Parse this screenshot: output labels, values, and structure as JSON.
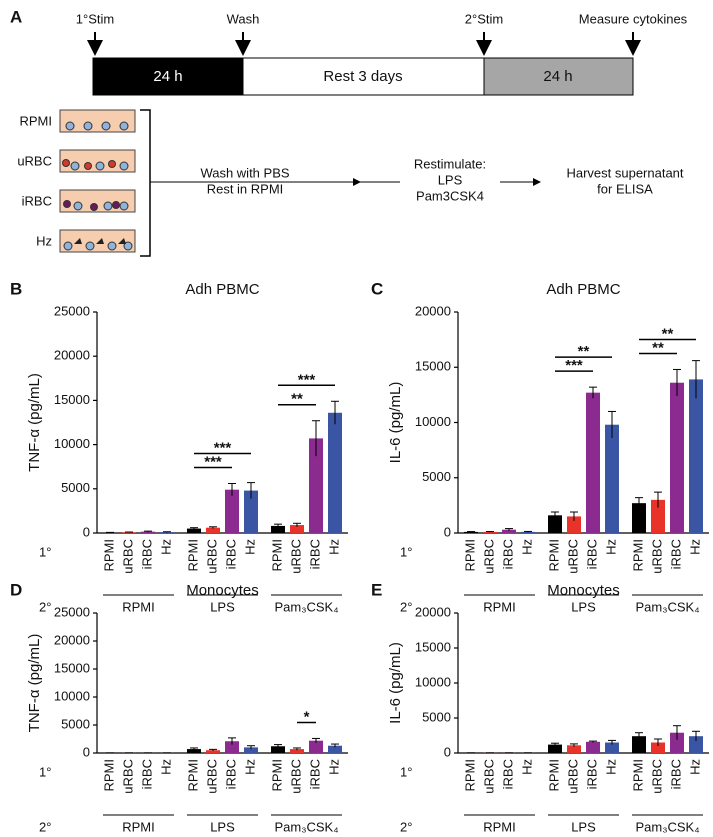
{
  "schematic": {
    "panel_label": "A",
    "events": [
      "1°Stim",
      "Wash",
      "2°Stim",
      "Measure cytokines"
    ],
    "phases": [
      "24 h",
      "Rest 3 days",
      "24 h"
    ],
    "wells": [
      "RPMI",
      "uRBC",
      "iRBC",
      "Hz"
    ],
    "steps": [
      [
        "Wash with PBS",
        "Rest in RPMI"
      ],
      [
        "Restimulate:",
        "LPS",
        "Pam3CSK4"
      ],
      [
        "Harvest supernatant",
        "for ELISA"
      ]
    ]
  },
  "chart_data": [
    {
      "type": "bar",
      "panel_label": "B",
      "title": "Adh PBMC",
      "y_label": "TNF-α (pg/mL)",
      "primary_label": "1°",
      "secondary_label": "2°",
      "categories": [
        "RPMI",
        "uRBC",
        "iRBC",
        "Hz",
        "RPMI",
        "uRBC",
        "iRBC",
        "Hz",
        "RPMI",
        "uRBC",
        "iRBC",
        "Hz"
      ],
      "groups": [
        "RPMI",
        "LPS",
        "Pam₃CSK₄"
      ],
      "colors": [
        "#000000",
        "#e8332a",
        "#8b2a8f",
        "#3a55a4",
        "#000000",
        "#e8332a",
        "#8b2a8f",
        "#3a55a4",
        "#000000",
        "#e8332a",
        "#8b2a8f",
        "#3a55a4"
      ],
      "values": [
        50,
        80,
        150,
        100,
        500,
        600,
        4900,
        4800,
        800,
        900,
        10700,
        13600
      ],
      "errors": [
        20,
        30,
        60,
        40,
        100,
        100,
        700,
        900,
        200,
        200,
        2000,
        1300
      ],
      "ylim": [
        0,
        25000
      ],
      "yticks": [
        0,
        5000,
        10000,
        15000,
        20000,
        25000
      ],
      "significance": [
        {
          "from": 4,
          "to": 6,
          "label": "***"
        },
        {
          "from": 4,
          "to": 7,
          "label": "***"
        },
        {
          "from": 8,
          "to": 10,
          "label": "**"
        },
        {
          "from": 8,
          "to": 11,
          "label": "***"
        }
      ]
    },
    {
      "type": "bar",
      "panel_label": "C",
      "title": "Adh PBMC",
      "y_label": "IL-6 (pg/mL)",
      "primary_label": "1°",
      "secondary_label": "2°",
      "categories": [
        "RPMI",
        "uRBC",
        "iRBC",
        "Hz",
        "RPMI",
        "uRBC",
        "iRBC",
        "Hz",
        "RPMI",
        "uRBC",
        "iRBC",
        "Hz"
      ],
      "groups": [
        "RPMI",
        "LPS",
        "Pam₃CSK₄"
      ],
      "colors": [
        "#000000",
        "#e8332a",
        "#8b2a8f",
        "#3a55a4",
        "#000000",
        "#e8332a",
        "#8b2a8f",
        "#3a55a4",
        "#000000",
        "#e8332a",
        "#8b2a8f",
        "#3a55a4"
      ],
      "values": [
        100,
        100,
        300,
        100,
        1600,
        1500,
        12700,
        9800,
        2700,
        3000,
        13600,
        13900
      ],
      "errors": [
        30,
        30,
        100,
        40,
        300,
        400,
        500,
        1200,
        500,
        700,
        1200,
        1700
      ],
      "ylim": [
        0,
        20000
      ],
      "yticks": [
        0,
        5000,
        10000,
        15000,
        20000
      ],
      "significance": [
        {
          "from": 4,
          "to": 6,
          "label": "***"
        },
        {
          "from": 4,
          "to": 7,
          "label": "**"
        },
        {
          "from": 8,
          "to": 10,
          "label": "**"
        },
        {
          "from": 8,
          "to": 11,
          "label": "**"
        }
      ]
    },
    {
      "type": "bar",
      "panel_label": "D",
      "title": "Monocytes",
      "y_label": "TNF-α (pg/mL)",
      "primary_label": "1°",
      "secondary_label": "2°",
      "categories": [
        "RPMI",
        "uRBC",
        "iRBC",
        "Hz",
        "RPMI",
        "uRBC",
        "iRBC",
        "Hz",
        "RPMI",
        "uRBC",
        "iRBC",
        "Hz"
      ],
      "groups": [
        "RPMI",
        "LPS",
        "Pam₃CSK₄"
      ],
      "colors": [
        "#000000",
        "#e8332a",
        "#8b2a8f",
        "#3a55a4",
        "#000000",
        "#e8332a",
        "#8b2a8f",
        "#3a55a4",
        "#000000",
        "#e8332a",
        "#8b2a8f",
        "#3a55a4"
      ],
      "values": [
        20,
        20,
        20,
        20,
        700,
        500,
        2100,
        1000,
        1200,
        700,
        2200,
        1300
      ],
      "errors": [
        10,
        10,
        10,
        10,
        200,
        150,
        600,
        300,
        300,
        200,
        400,
        300
      ],
      "ylim": [
        0,
        25000
      ],
      "yticks": [
        0,
        5000,
        10000,
        15000,
        20000,
        25000
      ],
      "significance": [
        {
          "from": 9,
          "to": 10,
          "label": "*"
        }
      ]
    },
    {
      "type": "bar",
      "panel_label": "E",
      "title": "Monocytes",
      "y_label": "IL-6 (pg/mL)",
      "primary_label": "1°",
      "secondary_label": "2°",
      "categories": [
        "RPMI",
        "uRBC",
        "iRBC",
        "Hz",
        "RPMI",
        "uRBC",
        "iRBC",
        "Hz",
        "RPMI",
        "uRBC",
        "iRBC",
        "Hz"
      ],
      "groups": [
        "RPMI",
        "LPS",
        "Pam₃CSK₄"
      ],
      "colors": [
        "#000000",
        "#e8332a",
        "#8b2a8f",
        "#3a55a4",
        "#000000",
        "#e8332a",
        "#8b2a8f",
        "#3a55a4",
        "#000000",
        "#e8332a",
        "#8b2a8f",
        "#3a55a4"
      ],
      "values": [
        20,
        20,
        20,
        20,
        1200,
        1100,
        1600,
        1500,
        2400,
        1500,
        2900,
        2400
      ],
      "errors": [
        10,
        10,
        10,
        10,
        200,
        200,
        100,
        300,
        500,
        500,
        1000,
        700
      ],
      "ylim": [
        0,
        20000
      ],
      "yticks": [
        0,
        5000,
        10000,
        15000,
        20000
      ],
      "significance": []
    }
  ]
}
